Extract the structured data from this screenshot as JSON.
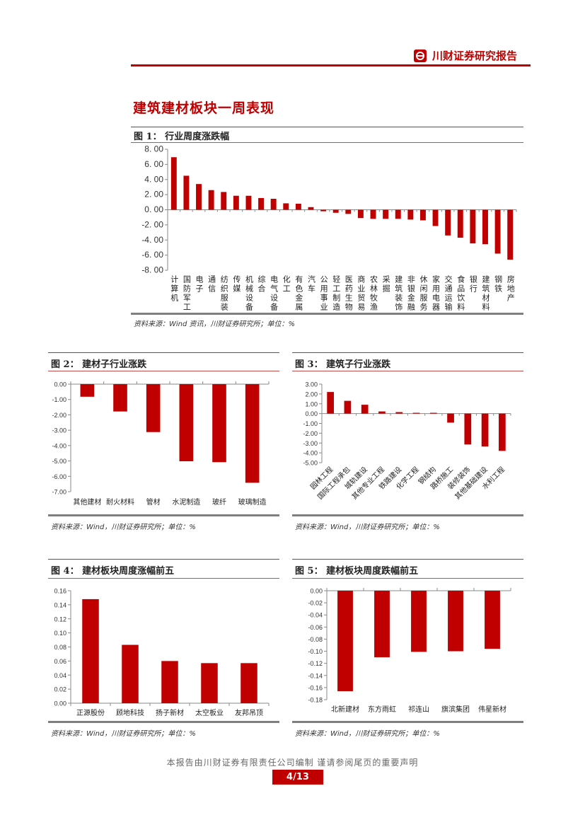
{
  "header": {
    "brand": "川财证券研究报告",
    "logo_icon": "chuancai-logo-icon"
  },
  "section_title": "建筑建材板块一周表现",
  "colors": {
    "accent": "#c00000",
    "bar": "#c00000"
  },
  "figures": [
    {
      "title": "图 1： 行业周度涨跌幅",
      "source": "资料来源：Wind 资讯，川财证券研究所；单位：%"
    },
    {
      "title": "图 2： 建材子行业涨跌",
      "source": "资料来源：Wind，川财证券研究所；单位：%"
    },
    {
      "title": "图 3： 建筑子行业涨跌",
      "source": "资料来源：Wind，川财证券研究所；单位：%"
    },
    {
      "title": "图 4： 建材板块周度涨幅前五",
      "source": "资料来源：Wind，川财证券研究所；单位：%"
    },
    {
      "title": "图 5： 建材板块周度跌幅前五",
      "source": "资料来源：Wind，川财证券研究所；单位：%"
    }
  ],
  "chart_data": [
    {
      "type": "bar",
      "title": "行业周度涨跌幅",
      "ylim": [
        -8,
        8
      ],
      "ytick_step": 2,
      "ytick_decimals": 2,
      "ytick_labels_spaced": true,
      "categories": [
        "计算机",
        "国防军工",
        "电子",
        "通信",
        "纺织服装",
        "传媒",
        "机械设备",
        "综合",
        "电气设备",
        "化工",
        "有色金属",
        "汽车",
        "公用事业",
        "轻工制造",
        "医药生物",
        "商业贸易",
        "农林牧渔",
        "采掘",
        "建筑装饰",
        "非银金融",
        "休闲服务",
        "家用电器",
        "交通运输",
        "食品饮料",
        "银行",
        "建筑材料",
        "钢铁",
        "房地产"
      ],
      "values": [
        6.95,
        4.5,
        3.4,
        2.6,
        2.35,
        1.85,
        1.85,
        1.55,
        1.45,
        0.85,
        0.8,
        0.35,
        -0.2,
        -0.4,
        -0.55,
        -1.1,
        -1.2,
        -1.2,
        -1.2,
        -1.3,
        -1.4,
        -2.15,
        -3.4,
        -3.7,
        -4.45,
        -4.55,
        -5.8,
        -6.6
      ]
    },
    {
      "type": "bar",
      "title": "建材子行业涨跌",
      "ylim": [
        -7,
        0
      ],
      "ytick_step": 1,
      "ytick_decimals": 2,
      "categories": [
        "其他建材",
        "耐火材料",
        "管材",
        "水泥制造",
        "玻纤",
        "玻璃制造"
      ],
      "values": [
        -0.82,
        -1.78,
        -3.12,
        -5.02,
        -5.08,
        -6.42
      ]
    },
    {
      "type": "bar",
      "title": "建筑子行业涨跌",
      "ylim": [
        -5,
        3
      ],
      "ytick_step": 1,
      "ytick_decimals": 2,
      "categories": [
        "园林工程",
        "国际工程承包",
        "城轨建设",
        "其他专业工程",
        "铁路建设",
        "化学工程",
        "钢结构",
        "路桥施工",
        "装修装饰",
        "其他基础建设",
        "水利工程"
      ],
      "values": [
        2.2,
        1.3,
        0.9,
        0.22,
        0.15,
        0.08,
        0.08,
        -0.92,
        -3.15,
        -3.35,
        -3.8
      ]
    },
    {
      "type": "bar",
      "title": "建材板块周度涨幅前五",
      "ylim": [
        0,
        0.16
      ],
      "ytick_step": 0.02,
      "ytick_decimals": 2,
      "categories": [
        "正源股份",
        "顾地科技",
        "扬子新材",
        "太空板业",
        "友邦吊顶"
      ],
      "values": [
        0.148,
        0.083,
        0.06,
        0.057,
        0.057
      ]
    },
    {
      "type": "bar",
      "title": "建材板块周度跌幅前五",
      "ylim": [
        -0.18,
        0
      ],
      "ytick_step": 0.02,
      "ytick_decimals": 2,
      "categories": [
        "北新建材",
        "东方雨虹",
        "祁连山",
        "旗滨集团",
        "伟星新材"
      ],
      "values": [
        -0.166,
        -0.11,
        -0.101,
        -0.1,
        -0.096
      ]
    }
  ],
  "footer": {
    "note": "本报告由川财证券有限责任公司编制 谨请参阅尾页的重要声明",
    "page": "4/13"
  }
}
